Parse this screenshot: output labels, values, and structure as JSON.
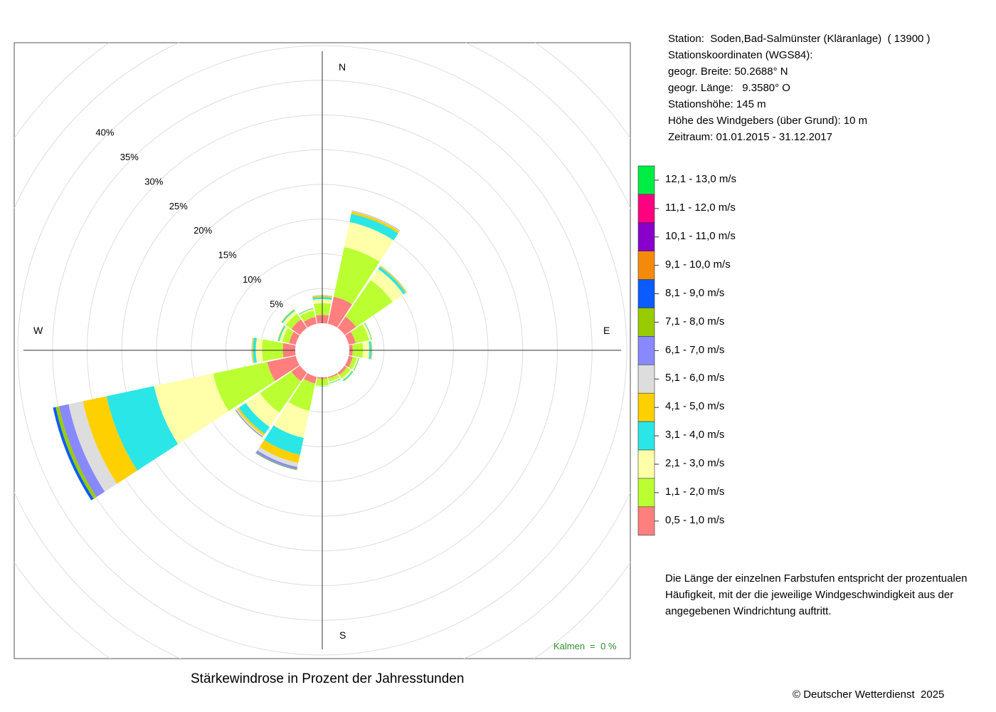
{
  "station_info": {
    "lines": [
      "Station:  Soden,Bad-Salmünster (Kläranlage)  ( 13900 )",
      "Stationskoordinaten (WGS84):",
      "geogr. Breite: 50.2688° N",
      "geogr. Länge:   9.3580° O",
      "Stationshöhe: 145 m",
      "Höhe des Windgebers (über Grund): 10 m",
      "Zeitraum: 01.01.2015 - 31.12.2017"
    ]
  },
  "note": {
    "lines": [
      "Die Länge der einzelnen Farbstufen entspricht der prozentualen",
      "Häufigkeit, mit der die jeweilige Windgeschwindigkeit aus der",
      "angegebenen Windrichtung auftritt."
    ]
  },
  "calm_text": "Kalmen  =  0 %",
  "copyright": "© Deutscher Wetterdienst  2025",
  "chart_data": {
    "type": "windrose",
    "title": "Stärkewindrose in Prozent der Jahresstunden",
    "radial_ticks": [
      "5%",
      "10%",
      "15%",
      "20%",
      "25%",
      "30%",
      "35%",
      "40%"
    ],
    "radial_tick_values": [
      5,
      10,
      15,
      20,
      25,
      30,
      35,
      40
    ],
    "radial_max": 40,
    "calm_percent": 0,
    "directions": [
      "N",
      "NNO",
      "NO",
      "ONO",
      "O",
      "OSO",
      "SO",
      "SSO",
      "S",
      "SSW",
      "SW",
      "WSW",
      "W",
      "WNW",
      "NW",
      "NNW"
    ],
    "direction_angles_deg": [
      0,
      22.5,
      45,
      67.5,
      90,
      112.5,
      135,
      157.5,
      180,
      202.5,
      225,
      247.5,
      270,
      292.5,
      315,
      337.5
    ],
    "compass_labels": [
      "N",
      "E",
      "S",
      "W"
    ],
    "legend": [
      {
        "label": "12,1 - 13,0 m/s",
        "color": "#00ee44"
      },
      {
        "label": "11,1 - 12,0 m/s",
        "color": "#ff0080"
      },
      {
        "label": "10,1 - 11,0 m/s",
        "color": "#8800cc"
      },
      {
        "label": "9,1 - 10,0 m/s",
        "color": "#f58a0a"
      },
      {
        "label": "8,1 - 9,0 m/s",
        "color": "#0a5cff"
      },
      {
        "label": "7,1 - 8,0 m/s",
        "color": "#99cc00"
      },
      {
        "label": "6,1 - 7,0 m/s",
        "color": "#8888ff"
      },
      {
        "label": "5,1 - 6,0 m/s",
        "color": "#dddddd"
      },
      {
        "label": "4,1 - 5,0 m/s",
        "color": "#ffd000"
      },
      {
        "label": "3,1 - 4,0 m/s",
        "color": "#2ae6e6"
      },
      {
        "label": "2,1 - 3,0 m/s",
        "color": "#ffffaa"
      },
      {
        "label": "1,1 - 2,0 m/s",
        "color": "#bbff33"
      },
      {
        "label": "0,5 - 1,0 m/s",
        "color": "#ff7f7f"
      }
    ],
    "speed_classes": [
      "0,5 - 1,0 m/s",
      "1,1 - 2,0 m/s",
      "2,1 - 3,0 m/s",
      "3,1 - 4,0 m/s",
      "4,1 - 5,0 m/s",
      "5,1 - 6,0 m/s",
      "6,1 - 7,0 m/s",
      "7,1 - 8,0 m/s",
      "8,1 - 9,0 m/s",
      "9,1 - 10,0 m/s",
      "10,1 - 11,0 m/s",
      "11,1 - 12,0 m/s",
      "12,1 - 13,0 m/s"
    ],
    "series": [
      {
        "direction": "N",
        "values": [
          1.2,
          1.7,
          0.6,
          0.3,
          0.2,
          0.05,
          0.02,
          0,
          0,
          0,
          0,
          0,
          0
        ]
      },
      {
        "direction": "NNO",
        "values": [
          4.0,
          7.3,
          3.7,
          1.2,
          0.35,
          0.1,
          0.05,
          0,
          0,
          0,
          0,
          0,
          0
        ]
      },
      {
        "direction": "NO",
        "values": [
          2.0,
          6.4,
          1.9,
          0.4,
          0.15,
          0.05,
          0.03,
          0,
          0,
          0,
          0,
          0,
          0
        ]
      },
      {
        "direction": "ONO",
        "values": [
          1.0,
          2.0,
          0.3,
          0.1,
          0.05,
          0.03,
          0,
          0,
          0,
          0,
          0,
          0,
          0
        ]
      },
      {
        "direction": "O",
        "values": [
          0.5,
          1.5,
          0.9,
          0.3,
          0.1,
          0.05,
          0,
          0,
          0,
          0,
          0,
          0,
          0
        ]
      },
      {
        "direction": "OSO",
        "values": [
          0.6,
          0.6,
          0.2,
          0.1,
          0.05,
          0,
          0,
          0,
          0,
          0,
          0,
          0,
          0
        ]
      },
      {
        "direction": "SO",
        "values": [
          0.4,
          0.6,
          0.3,
          0.2,
          0.05,
          0,
          0,
          0,
          0,
          0,
          0,
          0,
          0
        ]
      },
      {
        "direction": "SSO",
        "values": [
          0.2,
          0.5,
          0.2,
          0.1,
          0.03,
          0,
          0,
          0,
          0,
          0,
          0,
          0,
          0
        ]
      },
      {
        "direction": "S",
        "values": [
          0.2,
          1.0,
          0.1,
          0.05,
          0,
          0,
          0,
          0,
          0,
          0,
          0,
          0,
          0
        ]
      },
      {
        "direction": "SSW",
        "values": [
          1.0,
          4.0,
          4.0,
          2.5,
          1.2,
          0.6,
          0.3,
          0.1,
          0.05,
          0,
          0,
          0,
          0
        ]
      },
      {
        "direction": "SW",
        "values": [
          1.5,
          5.5,
          2.5,
          1.2,
          0.3,
          0.2,
          0.1,
          0.05,
          0,
          0,
          0,
          0,
          0
        ]
      },
      {
        "direction": "WSW",
        "values": [
          4.2,
          8.0,
          8.7,
          7.0,
          3.5,
          2.1,
          1.4,
          0.5,
          0.4,
          0,
          0,
          0,
          0
        ]
      },
      {
        "direction": "W",
        "values": [
          1.8,
          3.0,
          0.9,
          0.4,
          0.15,
          0.1,
          0,
          0,
          0,
          0,
          0,
          0,
          0
        ]
      },
      {
        "direction": "WNW",
        "values": [
          1.0,
          1.0,
          0.4,
          0.2,
          0.1,
          0,
          0,
          0,
          0,
          0,
          0,
          0,
          0
        ]
      },
      {
        "direction": "NW",
        "values": [
          1.5,
          1.0,
          0.5,
          0.2,
          0.1,
          0,
          0,
          0,
          0,
          0,
          0,
          0,
          0
        ]
      },
      {
        "direction": "NNW",
        "values": [
          1.0,
          1.0,
          0.2,
          0.1,
          0.05,
          0,
          0,
          0,
          0,
          0,
          0,
          0,
          0
        ]
      }
    ]
  }
}
